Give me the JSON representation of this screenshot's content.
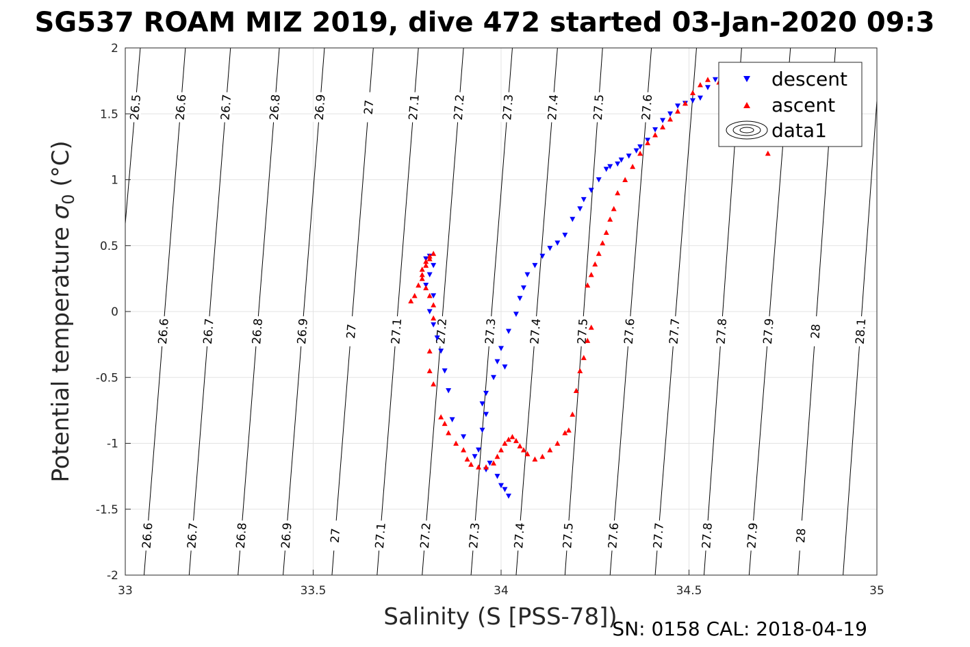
{
  "chart_data": {
    "type": "scatter",
    "title": "SG537 ROAM MIZ 2019, dive 472 started 03-Jan-2020 09:3",
    "xlabel": "Salinity (S [PSS-78])",
    "ylabel": "Potential temperature σ₀ (°C)",
    "ylabel_main": "Potential temperature ",
    "ylabel_sym": "σ",
    "ylabel_sub": "0",
    "ylabel_unit": " (°C)",
    "footer": "SN: 0158  CAL: 2018-04-19",
    "xlim": [
      33,
      35
    ],
    "ylim": [
      -2,
      2
    ],
    "xticks": [
      33,
      33.5,
      34,
      34.5,
      35
    ],
    "xtick_labels": [
      "33",
      "33.5",
      "34",
      "34.5",
      "35"
    ],
    "yticks": [
      -2,
      -1.5,
      -1,
      -0.5,
      0,
      0.5,
      1,
      1.5,
      2
    ],
    "ytick_labels": [
      "-2",
      "-1.5",
      "-1",
      "-0.5",
      "0",
      "0.5",
      "1",
      "1.5",
      "2"
    ],
    "grid": true,
    "legend_position": "top-right",
    "legend": [
      "descent",
      "ascent",
      "data1"
    ],
    "contours": {
      "levels": [
        26.5,
        26.6,
        26.7,
        26.8,
        26.9,
        27.0,
        27.1,
        27.2,
        27.3,
        27.4,
        27.5,
        27.6,
        27.7,
        27.8,
        27.9,
        28.0,
        28.1
      ],
      "level_labels": [
        "26.5",
        "26.6",
        "26.7",
        "26.8",
        "26.9",
        "27",
        "27.1",
        "27.2",
        "27.3",
        "27.4",
        "27.5",
        "27.6",
        "27.7",
        "27.8",
        "27.9",
        "28",
        "28.1"
      ],
      "salinity_at_2C": [
        33.04,
        33.16,
        33.28,
        33.41,
        33.53,
        33.66,
        33.78,
        33.9,
        34.03,
        34.15,
        34.27,
        34.4,
        34.52,
        34.64,
        34.77,
        34.89,
        35.01
      ],
      "salinity_at_minus2C": [
        32.92,
        33.05,
        33.17,
        33.3,
        33.42,
        33.55,
        33.67,
        33.79,
        33.92,
        34.04,
        34.17,
        34.29,
        34.41,
        34.54,
        34.66,
        34.79,
        34.91
      ],
      "label_rows": [
        {
          "theta": 1.55,
          "levels": [
            26.5,
            26.6,
            26.7,
            26.8,
            26.9,
            27.0,
            27.1,
            27.2,
            27.3,
            27.4,
            27.5,
            27.6,
            28.0
          ]
        },
        {
          "theta": -0.15,
          "levels": [
            26.5,
            26.6,
            26.7,
            26.8,
            26.9,
            27.0,
            27.1,
            27.2,
            27.3,
            27.4,
            27.5,
            27.6,
            27.7,
            27.8,
            27.9,
            28.0,
            28.1
          ]
        },
        {
          "theta": -1.7,
          "levels": [
            26.6,
            26.7,
            26.8,
            26.9,
            27.0,
            27.1,
            27.2,
            27.3,
            27.4,
            27.5,
            27.6,
            27.7,
            27.8,
            27.9,
            28.0
          ]
        }
      ]
    },
    "series": [
      {
        "name": "descent",
        "color": "#0000ff",
        "marker": "triangle-down",
        "x": [
          34.57,
          34.6,
          34.63,
          34.66,
          34.68,
          34.55,
          34.53,
          34.51,
          34.49,
          34.47,
          34.45,
          34.43,
          34.41,
          34.39,
          34.37,
          34.36,
          34.34,
          34.32,
          34.31,
          34.29,
          34.28,
          34.26,
          34.24,
          34.22,
          34.21,
          34.19,
          34.17,
          34.15,
          34.13,
          34.11,
          34.09,
          34.07,
          34.06,
          34.05,
          34.04,
          34.02,
          34.0,
          33.99,
          34.01,
          33.98,
          33.96,
          33.95,
          33.96,
          33.95,
          33.94,
          33.97,
          33.99,
          34.01,
          34.02,
          34.0,
          33.96,
          33.93,
          33.9,
          33.87,
          33.86,
          33.85,
          33.84,
          33.83,
          33.82,
          33.81,
          33.82,
          33.8,
          33.81,
          33.82,
          33.8,
          33.81
        ],
        "y": [
          1.76,
          1.77,
          1.76,
          1.77,
          1.76,
          1.7,
          1.62,
          1.6,
          1.58,
          1.56,
          1.5,
          1.45,
          1.38,
          1.3,
          1.25,
          1.22,
          1.18,
          1.15,
          1.12,
          1.1,
          1.08,
          1.0,
          0.92,
          0.85,
          0.78,
          0.7,
          0.58,
          0.52,
          0.48,
          0.42,
          0.35,
          0.28,
          0.18,
          0.1,
          -0.02,
          -0.15,
          -0.28,
          -0.38,
          -0.42,
          -0.5,
          -0.62,
          -0.7,
          -0.78,
          -0.9,
          -1.05,
          -1.15,
          -1.25,
          -1.35,
          -1.4,
          -1.32,
          -1.2,
          -1.1,
          -0.95,
          -0.82,
          -0.6,
          -0.45,
          -0.3,
          -0.2,
          -0.1,
          0.0,
          0.12,
          0.2,
          0.28,
          0.35,
          0.4,
          0.42
        ]
      },
      {
        "name": "ascent",
        "color": "#ff0000",
        "marker": "triangle-up",
        "x": [
          34.71,
          34.71,
          34.7,
          34.66,
          34.62,
          34.58,
          34.55,
          34.53,
          34.51,
          34.49,
          34.47,
          34.45,
          34.43,
          34.41,
          34.39,
          34.37,
          34.35,
          34.33,
          34.31,
          34.3,
          34.29,
          34.28,
          34.27,
          34.26,
          34.25,
          34.24,
          34.23,
          34.24,
          34.23,
          34.22,
          34.21,
          34.2,
          34.19,
          34.18,
          34.17,
          34.15,
          34.13,
          34.11,
          34.09,
          34.07,
          34.06,
          34.05,
          34.04,
          34.03,
          34.02,
          34.01,
          34.0,
          33.99,
          33.98,
          33.96,
          33.94,
          33.92,
          33.91,
          33.9,
          33.88,
          33.86,
          33.85,
          33.84,
          33.82,
          33.81,
          33.81,
          33.82,
          33.82,
          33.81,
          33.8,
          33.79,
          33.79,
          33.8,
          33.81,
          33.82,
          33.81,
          33.8,
          33.79,
          33.78,
          33.77,
          33.76
        ],
        "y": [
          1.2,
          1.3,
          1.45,
          1.65,
          1.72,
          1.74,
          1.76,
          1.72,
          1.66,
          1.58,
          1.52,
          1.46,
          1.4,
          1.34,
          1.28,
          1.2,
          1.1,
          1.0,
          0.9,
          0.78,
          0.7,
          0.6,
          0.52,
          0.44,
          0.36,
          0.28,
          0.2,
          -0.12,
          -0.22,
          -0.35,
          -0.45,
          -0.6,
          -0.78,
          -0.9,
          -0.92,
          -1.0,
          -1.05,
          -1.1,
          -1.12,
          -1.08,
          -1.05,
          -1.02,
          -0.98,
          -0.95,
          -0.97,
          -1.0,
          -1.05,
          -1.1,
          -1.15,
          -1.18,
          -1.18,
          -1.16,
          -1.12,
          -1.05,
          -1.0,
          -0.92,
          -0.85,
          -0.8,
          -0.55,
          -0.45,
          -0.3,
          -0.05,
          0.05,
          0.12,
          0.18,
          0.25,
          0.32,
          0.38,
          0.42,
          0.44,
          0.4,
          0.35,
          0.28,
          0.2,
          0.12,
          0.08
        ]
      }
    ]
  }
}
